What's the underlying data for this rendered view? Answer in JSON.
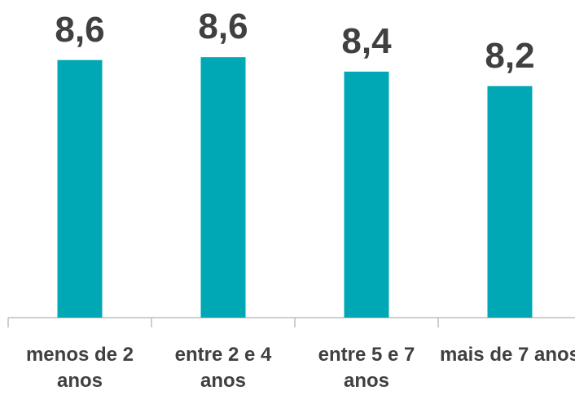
{
  "chart_data": {
    "type": "bar",
    "categories": [
      "menos de 2 anos",
      "entre 2 e 4 anos",
      "entre 5 e 7 anos",
      "mais de 7 anos"
    ],
    "values": [
      8.56,
      8.6,
      8.4,
      8.2
    ],
    "value_labels": [
      "8,6",
      "8,6",
      "8,4",
      "8,2"
    ],
    "color": "#00a8b5",
    "ylim": [
      5,
      9.3
    ]
  }
}
